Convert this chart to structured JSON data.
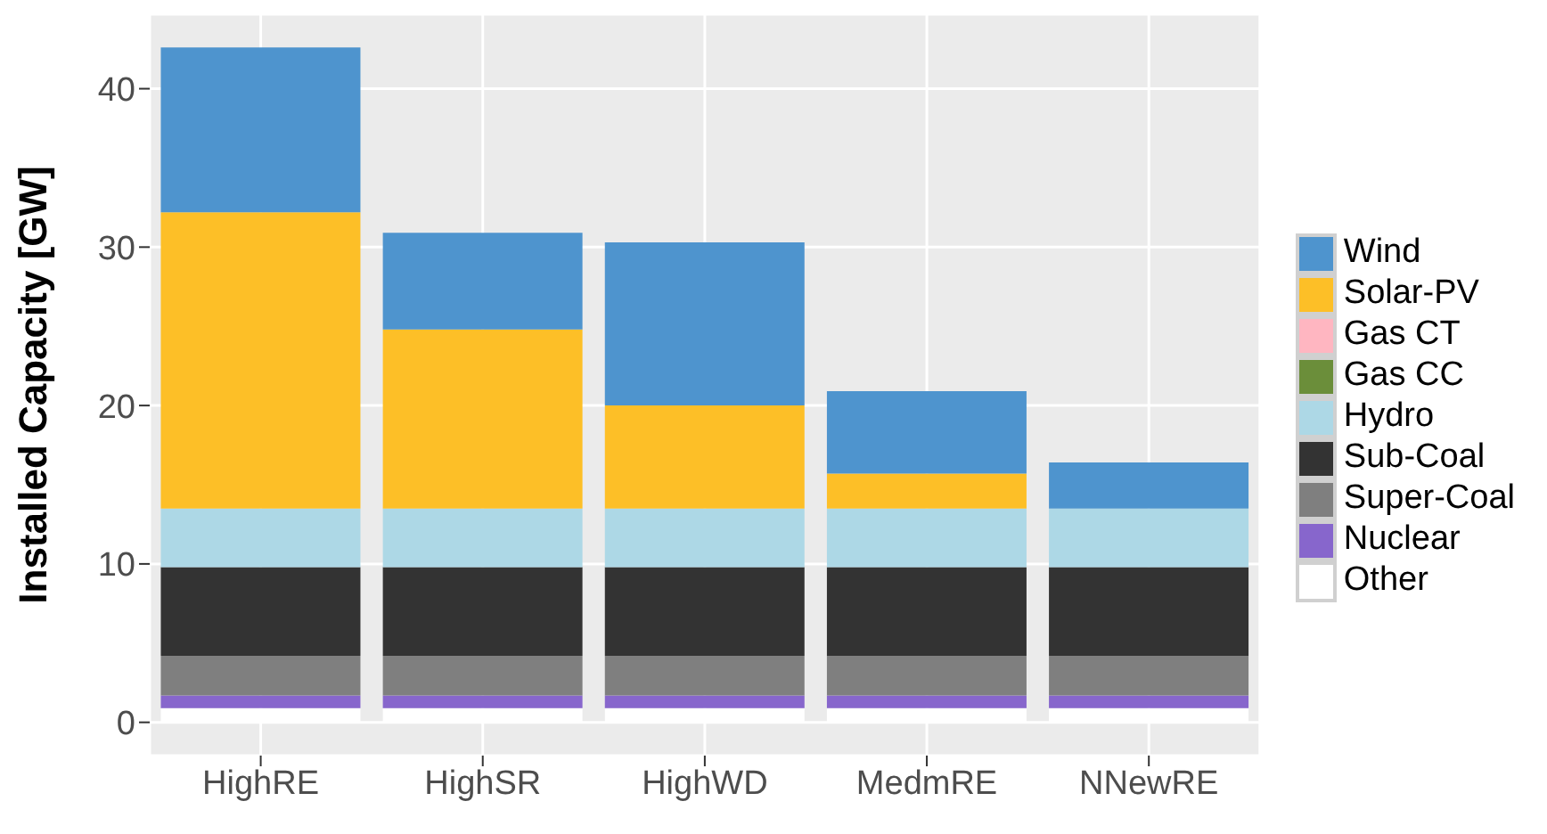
{
  "chart_data": {
    "type": "bar",
    "ylabel": "Installed Capacity [GW]",
    "categories": [
      "HighRE",
      "HighSR",
      "HighWD",
      "MedmRE",
      "NNewRE"
    ],
    "stacked": true,
    "ylim": [
      -2.1,
      44.7
    ],
    "yticks": [
      0,
      10,
      20,
      30,
      40
    ],
    "grid": true,
    "legend": "right",
    "series": [
      {
        "name": "Other",
        "color": "#ffffff",
        "values": [
          0.9,
          0.9,
          0.9,
          0.9,
          0.9
        ]
      },
      {
        "name": "Nuclear",
        "color": "#8766cc",
        "values": [
          0.8,
          0.8,
          0.8,
          0.8,
          0.8
        ]
      },
      {
        "name": "Super-Coal",
        "color": "#7f7f7f",
        "values": [
          2.5,
          2.5,
          2.5,
          2.5,
          2.5
        ]
      },
      {
        "name": "Sub-Coal",
        "color": "#333333",
        "values": [
          5.6,
          5.6,
          5.6,
          5.6,
          5.6
        ]
      },
      {
        "name": "Hydro",
        "color": "#add8e6",
        "values": [
          3.7,
          3.7,
          3.7,
          3.7,
          3.7
        ]
      },
      {
        "name": "Gas CC",
        "color": "#6b8e3a",
        "values": [
          0,
          0,
          0,
          0,
          0
        ]
      },
      {
        "name": "Gas CT",
        "color": "#ffb6c1",
        "values": [
          0,
          0,
          0,
          0,
          0
        ]
      },
      {
        "name": "Solar-PV",
        "color": "#fdbf27",
        "values": [
          18.7,
          11.3,
          6.5,
          2.2,
          0
        ]
      },
      {
        "name": "Wind",
        "color": "#4e94ce",
        "values": [
          10.4,
          6.1,
          10.3,
          5.2,
          2.9
        ]
      }
    ]
  }
}
